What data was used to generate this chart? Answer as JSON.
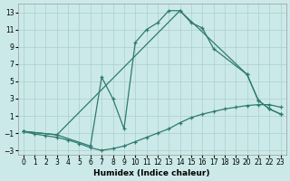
{
  "xlabel": "Humidex (Indice chaleur)",
  "xlim": [
    -0.5,
    23.5
  ],
  "ylim": [
    -3.5,
    14.0
  ],
  "yticks": [
    -3,
    -1,
    1,
    3,
    5,
    7,
    9,
    11,
    13
  ],
  "xticks": [
    0,
    1,
    2,
    3,
    4,
    5,
    6,
    7,
    8,
    9,
    10,
    11,
    12,
    13,
    14,
    15,
    16,
    17,
    18,
    19,
    20,
    21,
    22,
    23
  ],
  "bg_color": "#cce9e9",
  "line_color": "#2e7b6e",
  "grid_color": "#aacfcf",
  "curve1_x": [
    0,
    1,
    2,
    3,
    4,
    5,
    6,
    7,
    8,
    9,
    10,
    11,
    12,
    13,
    14,
    15,
    16,
    17,
    18,
    19,
    20,
    21,
    22,
    23
  ],
  "curve1_y": [
    -0.8,
    -1.1,
    -1.3,
    -1.5,
    -1.8,
    -2.2,
    -2.7,
    -3.0,
    -2.8,
    -2.5,
    -2.0,
    -1.5,
    -1.0,
    -0.5,
    0.2,
    0.8,
    1.2,
    1.5,
    1.8,
    2.0,
    2.2,
    2.3,
    2.3,
    2.0
  ],
  "curve2_x": [
    0,
    3,
    6,
    7,
    8,
    9,
    10,
    11,
    12,
    13,
    14,
    15,
    16,
    17,
    20,
    21,
    22,
    23
  ],
  "curve2_y": [
    -0.8,
    -1.2,
    -2.5,
    5.5,
    3.0,
    -0.5,
    9.5,
    11.0,
    11.8,
    13.2,
    13.2,
    11.8,
    11.2,
    8.8,
    5.8,
    2.8,
    1.8,
    1.2
  ],
  "curve3_x": [
    0,
    3,
    14,
    20,
    21,
    22,
    23
  ],
  "curve3_y": [
    -0.8,
    -1.2,
    13.2,
    5.8,
    2.8,
    1.8,
    1.2
  ]
}
